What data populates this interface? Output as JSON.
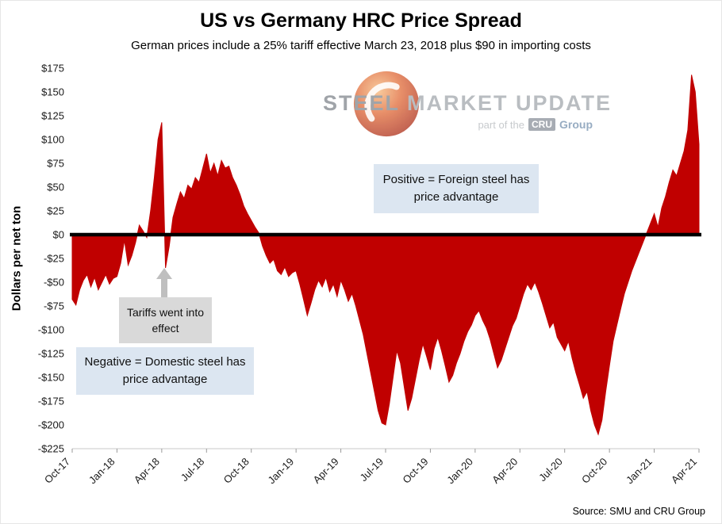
{
  "header": {
    "title": "US vs Germany HRC Price Spread",
    "subtitle": "German prices include a 25% tariff effective March 23, 2018 plus $90 in importing costs"
  },
  "watermark": {
    "brand_part1": "STEEL",
    "brand_part2": "MARKET UPDATE",
    "tagline_prefix": "part of the",
    "tagline_box": "CRU",
    "tagline_suffix": "Group"
  },
  "annotations": {
    "positive": "Positive = Foreign steel has price advantage",
    "tariffs": "Tariffs went into effect",
    "negative": "Negative = Domestic steel has price advantage"
  },
  "source": "Source: SMU and CRU Group",
  "chart_data": {
    "type": "area",
    "title": "US vs Germany HRC Price Spread",
    "subtitle": "German prices include a 25% tariff effective March 23, 2018 plus $90 in importing costs",
    "xlabel": "",
    "ylabel": "Dollars per net ton",
    "ylim": [
      -225,
      175
    ],
    "ytick_step": 25,
    "baseline": 0,
    "fill_color": "#C00000",
    "zero_line_color": "#000000",
    "legend": "none",
    "grid": "off",
    "x_tick_labels": [
      "Oct-17",
      "Jan-18",
      "Apr-18",
      "Jul-18",
      "Oct-18",
      "Jan-19",
      "Apr-19",
      "Jul-19",
      "Oct-19",
      "Jan-20",
      "Apr-20",
      "Jul-20",
      "Oct-20",
      "Jan-21",
      "Apr-21"
    ],
    "x_tick_interval_months": 3,
    "points_per_month": 4,
    "values_unit": "US dollars per net ton (US minus Germany HRC spread), approx. weekly",
    "values": [
      -68,
      -74,
      -58,
      -48,
      -42,
      -55,
      -45,
      -58,
      -50,
      -42,
      -52,
      -46,
      -44,
      -30,
      -6,
      -32,
      -22,
      -8,
      10,
      4,
      -3,
      25,
      60,
      100,
      118,
      -35,
      -12,
      18,
      32,
      45,
      38,
      52,
      48,
      60,
      55,
      70,
      85,
      65,
      75,
      62,
      78,
      70,
      72,
      60,
      52,
      42,
      30,
      22,
      15,
      8,
      2,
      -12,
      -22,
      -30,
      -26,
      -38,
      -42,
      -34,
      -44,
      -40,
      -38,
      -52,
      -68,
      -85,
      -72,
      -58,
      -48,
      -55,
      -45,
      -60,
      -52,
      -65,
      -48,
      -58,
      -70,
      -62,
      -75,
      -90,
      -105,
      -125,
      -145,
      -165,
      -185,
      -198,
      -200,
      -178,
      -150,
      -122,
      -135,
      -160,
      -185,
      -172,
      -152,
      -132,
      -115,
      -128,
      -142,
      -120,
      -108,
      -122,
      -138,
      -155,
      -148,
      -135,
      -125,
      -112,
      -102,
      -95,
      -85,
      -80,
      -90,
      -98,
      -110,
      -125,
      -140,
      -132,
      -120,
      -108,
      -96,
      -88,
      -75,
      -62,
      -52,
      -58,
      -50,
      -60,
      -72,
      -85,
      -98,
      -92,
      -108,
      -115,
      -122,
      -112,
      -130,
      -145,
      -158,
      -172,
      -165,
      -185,
      -200,
      -210,
      -195,
      -165,
      -138,
      -112,
      -95,
      -78,
      -62,
      -50,
      -38,
      -28,
      -18,
      -8,
      2,
      12,
      22,
      8,
      28,
      40,
      55,
      68,
      62,
      75,
      88,
      110,
      168,
      150,
      95
    ]
  }
}
